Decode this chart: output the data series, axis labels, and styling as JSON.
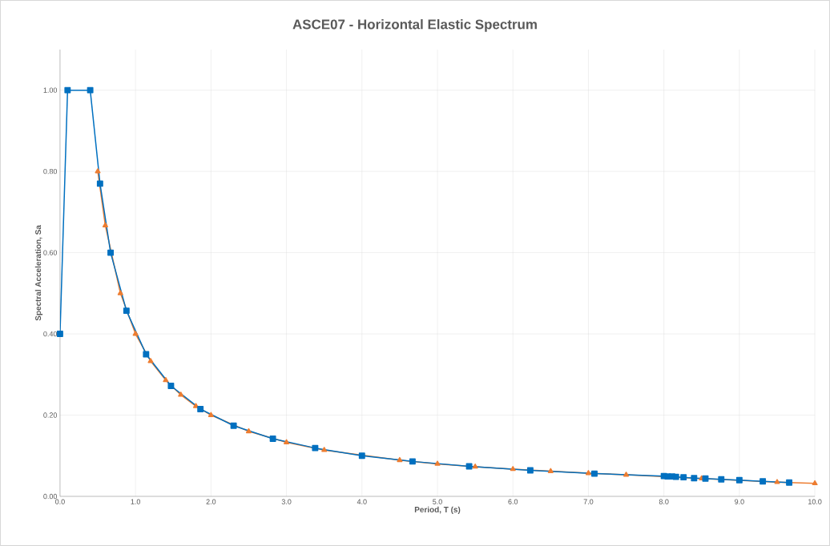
{
  "chart_data": {
    "type": "line",
    "title": "ASCE07 - Horizontal Elastic Spectrum",
    "xlabel": "Period, T (s)",
    "ylabel": "Spectral Acceleration, Sa",
    "xlim": [
      0,
      10
    ],
    "ylim": [
      0,
      1.1
    ],
    "xticks": [
      {
        "value": 0,
        "label": "0.0"
      },
      {
        "value": 1,
        "label": "1.0"
      },
      {
        "value": 2,
        "label": "2.0"
      },
      {
        "value": 3,
        "label": "3.0"
      },
      {
        "value": 4,
        "label": "4.0"
      },
      {
        "value": 5,
        "label": "5.0"
      },
      {
        "value": 6,
        "label": "6.0"
      },
      {
        "value": 7,
        "label": "7.0"
      },
      {
        "value": 8,
        "label": "8.0"
      },
      {
        "value": 9,
        "label": "9.0"
      },
      {
        "value": 10,
        "label": "10.0"
      }
    ],
    "yticks": [
      {
        "value": 0,
        "label": "0.00"
      },
      {
        "value": 0.2,
        "label": "0.20"
      },
      {
        "value": 0.4,
        "label": "0.40"
      },
      {
        "value": 0.6,
        "label": "0.60"
      },
      {
        "value": 0.8,
        "label": "0.80"
      },
      {
        "value": 1.0,
        "label": "1.00"
      }
    ],
    "grid": true,
    "line_style": "solid",
    "series": [
      {
        "color": "#ed7d31",
        "marker": "triangle",
        "x": [
          0.5,
          0.6,
          0.8,
          1.0,
          1.2,
          1.4,
          1.6,
          1.8,
          2.0,
          2.5,
          3.0,
          3.5,
          4.0,
          4.5,
          5.0,
          5.5,
          6.0,
          6.5,
          7.0,
          7.5,
          8.0,
          8.5,
          9.0,
          9.5,
          10.0
        ],
        "values": [
          0.8,
          0.667,
          0.5,
          0.4,
          0.333,
          0.286,
          0.25,
          0.222,
          0.2,
          0.16,
          0.133,
          0.114,
          null,
          0.089,
          0.08,
          0.073,
          0.067,
          0.062,
          0.057,
          0.053,
          null,
          0.044,
          null,
          0.035,
          0.032
        ]
      },
      {
        "color": "#0070c0",
        "marker": "square",
        "x": [
          0,
          0.1,
          0.4,
          0.53,
          0.67,
          0.88,
          1.14,
          1.47,
          1.86,
          2.3,
          2.82,
          3.38,
          4.0,
          4.67,
          5.42,
          6.23,
          7.08,
          8.0,
          8.05,
          8.11,
          8.16,
          8.26,
          8.4,
          8.55,
          8.76,
          9.0,
          9.31,
          9.66
        ],
        "values": [
          0.4,
          1.0,
          1.0,
          0.77,
          0.6,
          0.457,
          0.35,
          0.272,
          0.215,
          0.174,
          0.142,
          0.119,
          0.1,
          0.086,
          0.074,
          0.064,
          0.056,
          0.05,
          0.049,
          0.049,
          0.048,
          0.047,
          0.045,
          0.044,
          0.042,
          0.04,
          0.037,
          0.034
        ]
      }
    ]
  }
}
